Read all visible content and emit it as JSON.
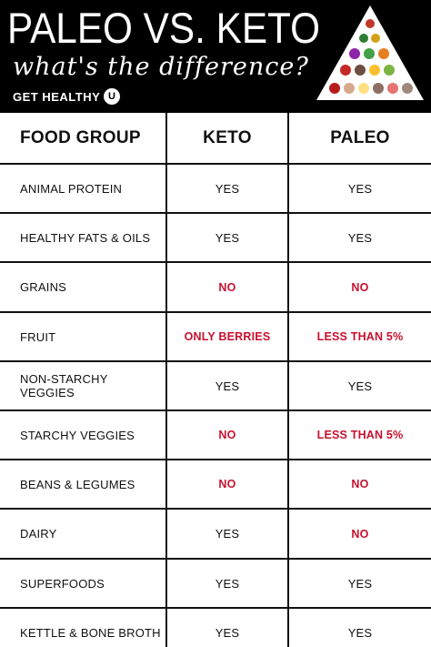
{
  "header": {
    "title": "PALEO VS. KETO",
    "subtitle": "what's the difference?",
    "brand": "GET HEALTHY",
    "brand_badge": "U",
    "pyramid_icon": "food-pyramid-icon"
  },
  "colors": {
    "negative": "#c8102e",
    "header_bg": "#000000",
    "text": "#111111"
  },
  "table": {
    "columns": [
      "FOOD GROUP",
      "KETO",
      "PALEO"
    ],
    "rows": [
      {
        "food": "ANIMAL PROTEIN",
        "keto": "YES",
        "paleo": "YES",
        "keto_neg": false,
        "paleo_neg": false
      },
      {
        "food": "HEALTHY FATS & OILS",
        "keto": "YES",
        "paleo": "YES",
        "keto_neg": false,
        "paleo_neg": false
      },
      {
        "food": "GRAINS",
        "keto": "NO",
        "paleo": "NO",
        "keto_neg": true,
        "paleo_neg": true
      },
      {
        "food": "FRUIT",
        "keto": "ONLY BERRIES",
        "paleo": "LESS THAN 5%",
        "keto_neg": true,
        "paleo_neg": true
      },
      {
        "food": "NON-STARCHY VEGGIES",
        "keto": "YES",
        "paleo": "YES",
        "keto_neg": false,
        "paleo_neg": false
      },
      {
        "food": "STARCHY VEGGIES",
        "keto": "NO",
        "paleo": "LESS THAN 5%",
        "keto_neg": true,
        "paleo_neg": true
      },
      {
        "food": "BEANS & LEGUMES",
        "keto": "NO",
        "paleo": "NO",
        "keto_neg": true,
        "paleo_neg": true
      },
      {
        "food": "DAIRY",
        "keto": "YES",
        "paleo": "NO",
        "keto_neg": false,
        "paleo_neg": true
      },
      {
        "food": "SUPERFOODS",
        "keto": "YES",
        "paleo": "YES",
        "keto_neg": false,
        "paleo_neg": false
      },
      {
        "food": "KETTLE & BONE BROTH",
        "keto": "YES",
        "paleo": "YES",
        "keto_neg": false,
        "paleo_neg": false
      }
    ]
  }
}
